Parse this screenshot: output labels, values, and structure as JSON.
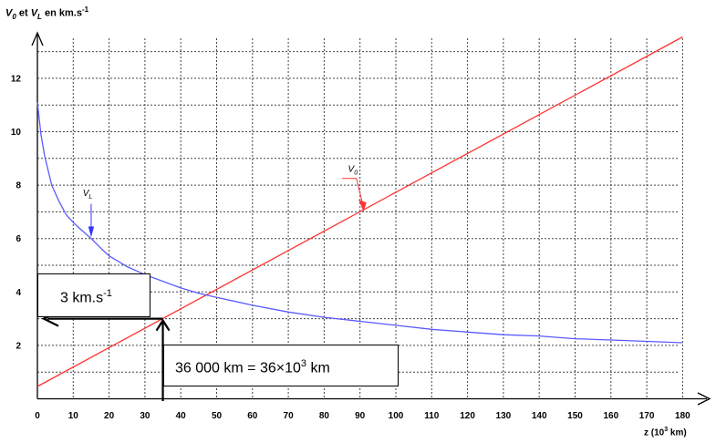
{
  "chart_data": {
    "type": "line",
    "title": "",
    "ylabel": {
      "v0_symbol": "V",
      "v0_sub": "0",
      "et": " et ",
      "vl_symbol": "V",
      "vl_sub": "L",
      "units": " en km.s",
      "units_exp": "-1"
    },
    "xlabel": {
      "text": "z (10",
      "exp": "3",
      "tail": " km)"
    },
    "xlim": [
      0,
      185
    ],
    "ylim": [
      0,
      14
    ],
    "x_ticks": [
      0,
      10,
      20,
      30,
      40,
      50,
      60,
      70,
      80,
      90,
      100,
      110,
      120,
      130,
      140,
      150,
      160,
      170,
      180
    ],
    "y_ticks": [
      2,
      4,
      6,
      8,
      10,
      12
    ],
    "grid": true,
    "series": [
      {
        "name": "V0",
        "color": "#ff3333",
        "x": [
          0,
          180
        ],
        "y": [
          0.46,
          13.55
        ]
      },
      {
        "name": "VL",
        "color": "#5a5aff",
        "x": [
          0,
          1,
          2,
          4,
          6,
          8,
          10,
          12,
          15,
          18,
          20,
          25,
          30,
          35,
          40,
          45,
          50,
          60,
          70,
          80,
          90,
          100,
          110,
          120,
          130,
          140,
          150,
          160,
          170,
          180
        ],
        "y": [
          11.1,
          9.9,
          9.1,
          8.0,
          7.4,
          6.9,
          6.6,
          6.35,
          6.0,
          5.6,
          5.35,
          4.95,
          4.65,
          4.4,
          4.15,
          3.95,
          3.8,
          3.5,
          3.25,
          3.05,
          2.9,
          2.75,
          2.6,
          2.5,
          2.4,
          2.35,
          2.25,
          2.2,
          2.15,
          2.1
        ]
      }
    ],
    "annotations": {
      "v0_label": {
        "symbol": "V",
        "sub": "0",
        "x": 88,
        "y": 8.5,
        "arrow_to": [
          91,
          7.0
        ]
      },
      "vl_label": {
        "symbol": "V",
        "sub": "L",
        "x": 14,
        "y": 7.6,
        "arrow_to": [
          15,
          6.1
        ]
      },
      "speed_box": {
        "text": "3 km.s",
        "exp": "-1"
      },
      "distance_box": {
        "text": "36 000 km = 36×10",
        "exp": "3",
        "tail": " km"
      },
      "intersection": {
        "x": 35,
        "y": 3.0
      }
    }
  }
}
